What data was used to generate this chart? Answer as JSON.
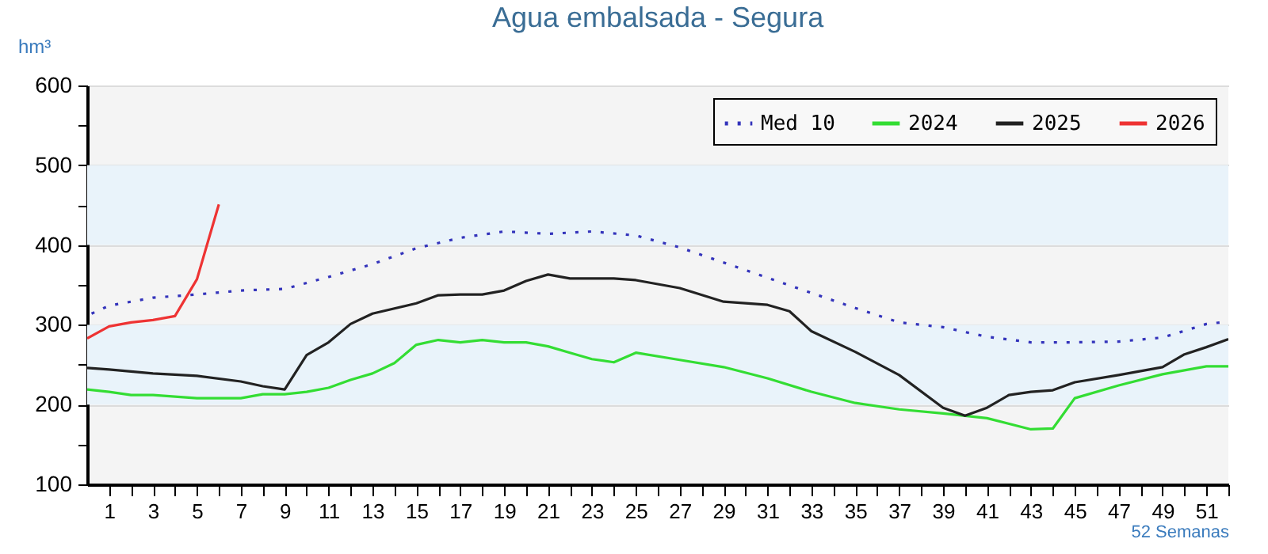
{
  "chart_data": {
    "type": "line",
    "title": "Agua embalsada - Segura",
    "ylabel": "hm³",
    "xlabel": "52 Semanas",
    "xlim": [
      0,
      52
    ],
    "xticks": [
      1,
      {
        "value": 2,
        "label": null
      },
      3,
      {
        "value": 4,
        "label": null
      },
      5,
      {
        "value": 6,
        "label": null
      },
      7,
      {
        "value": 8,
        "label": null
      },
      9,
      {
        "value": 10,
        "label": null
      },
      11,
      {
        "value": 12,
        "label": null
      },
      13,
      {
        "value": 14,
        "label": null
      },
      15,
      {
        "value": 16,
        "label": null
      },
      17,
      {
        "value": 18,
        "label": null
      },
      19,
      {
        "value": 20,
        "label": null
      },
      21,
      {
        "value": 22,
        "label": null
      },
      23,
      {
        "value": 24,
        "label": null
      },
      25,
      {
        "value": 26,
        "label": null
      },
      27,
      {
        "value": 28,
        "label": null
      },
      29,
      {
        "value": 30,
        "label": null
      },
      31,
      {
        "value": 32,
        "label": null
      },
      33,
      {
        "value": 34,
        "label": null
      },
      35,
      {
        "value": 36,
        "label": null
      },
      37,
      {
        "value": 38,
        "label": null
      },
      39,
      {
        "value": 40,
        "label": null
      },
      41,
      {
        "value": 42,
        "label": null
      },
      43,
      {
        "value": 44,
        "label": null
      },
      45,
      {
        "value": 46,
        "label": null
      },
      47,
      {
        "value": 48,
        "label": null
      },
      49,
      {
        "value": 50,
        "label": null
      },
      51,
      {
        "value": 52,
        "label": null
      }
    ],
    "ylim": [
      100,
      600
    ],
    "yticks": [
      100,
      {
        "value": 150,
        "label": null
      },
      200,
      {
        "value": 250,
        "label": null
      },
      300,
      {
        "value": 350,
        "label": null
      },
      400,
      {
        "value": 450,
        "label": null
      },
      500,
      {
        "value": 550,
        "label": null
      },
      600
    ],
    "grid": "y",
    "legend": "top right",
    "bands": [
      {
        "axis": "y",
        "from": 200,
        "to": 300,
        "color": "#e9f3fa"
      },
      {
        "axis": "y",
        "from": 400,
        "to": 500,
        "color": "#e9f3fa"
      }
    ],
    "series": [
      {
        "name": "Med 10",
        "color": "#3333bb",
        "line_style": "dotted",
        "x": [
          0.2,
          1,
          3,
          5,
          7,
          9,
          11,
          13,
          15,
          17,
          19,
          21,
          23,
          25,
          27,
          29,
          31,
          33,
          35,
          37,
          39,
          41,
          43,
          45,
          47,
          49,
          51,
          52
        ],
        "values": [
          314,
          324,
          334,
          338,
          343,
          345,
          360,
          376,
          396,
          409,
          417,
          414,
          417,
          412,
          397,
          378,
          359,
          340,
          321,
          303,
          297,
          285,
          278,
          278,
          279,
          284,
          301,
          304
        ]
      },
      {
        "name": "2024",
        "color": "#33dd33",
        "x": [
          0,
          1,
          2,
          3,
          5,
          7,
          8,
          9,
          10,
          11,
          12,
          13,
          14,
          15,
          16,
          17,
          18,
          19,
          20,
          21,
          22,
          23,
          24,
          25,
          27,
          29,
          31,
          33,
          35,
          37,
          39,
          41,
          43,
          44,
          45,
          47,
          49,
          51,
          52
        ],
        "values": [
          219,
          216,
          212,
          212,
          208,
          208,
          213,
          213,
          216,
          221,
          231,
          239,
          252,
          275,
          281,
          278,
          281,
          278,
          278,
          273,
          265,
          257,
          253,
          265,
          256,
          247,
          233,
          216,
          202,
          194,
          189,
          183,
          169,
          170,
          208,
          224,
          238,
          248,
          248
        ]
      },
      {
        "name": "2025",
        "color": "#222222",
        "x": [
          0,
          1,
          3,
          5,
          7,
          8,
          9,
          10,
          11,
          12,
          13,
          15,
          16,
          17,
          18,
          19,
          20,
          21,
          22,
          23,
          24,
          25,
          27,
          29,
          31,
          32,
          33,
          35,
          37,
          39,
          40,
          41,
          42,
          43,
          44,
          45,
          47,
          49,
          50,
          51,
          52
        ],
        "values": [
          246,
          244,
          239,
          236,
          229,
          223,
          219,
          262,
          278,
          301,
          314,
          327,
          337,
          338,
          338,
          343,
          355,
          363,
          358,
          358,
          358,
          356,
          346,
          329,
          325,
          317,
          292,
          266,
          237,
          196,
          186,
          196,
          212,
          216,
          218,
          228,
          237,
          247,
          263,
          272,
          282
        ]
      },
      {
        "name": "2026",
        "color": "#ee3333",
        "x": [
          0,
          1,
          2,
          3,
          4,
          5,
          6
        ],
        "values": [
          283,
          298,
          303,
          306,
          311,
          357,
          451
        ]
      }
    ]
  }
}
